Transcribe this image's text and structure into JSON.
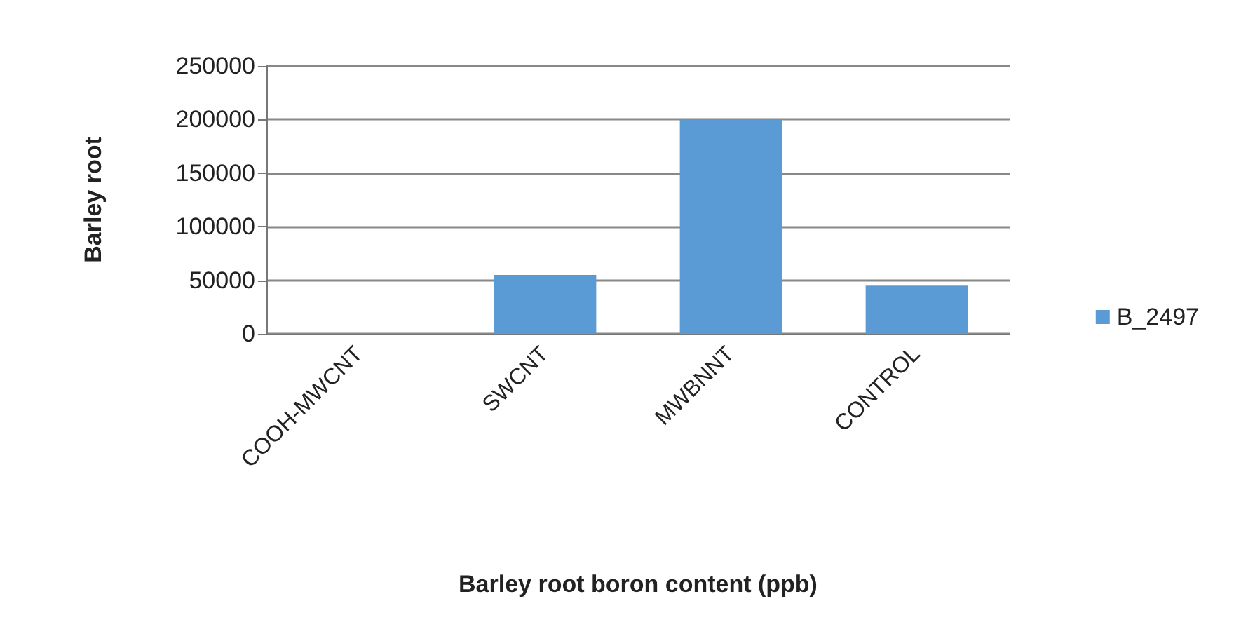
{
  "chart_data": {
    "type": "bar",
    "xlabel": "Barley root boron content (ppb)",
    "ylabel": "Barley root",
    "categories": [
      "COOH-MWCNT",
      "SWCNT",
      "MWBNNT",
      "CONTROL"
    ],
    "series": [
      {
        "name": "B_2497",
        "color": "#5b9bd5",
        "values": [
          0,
          55000,
          200000,
          45000
        ]
      }
    ],
    "ylim": [
      0,
      250000
    ],
    "yticks": [
      0,
      50000,
      100000,
      150000,
      200000,
      250000
    ],
    "grid": "y",
    "legend": "right"
  }
}
